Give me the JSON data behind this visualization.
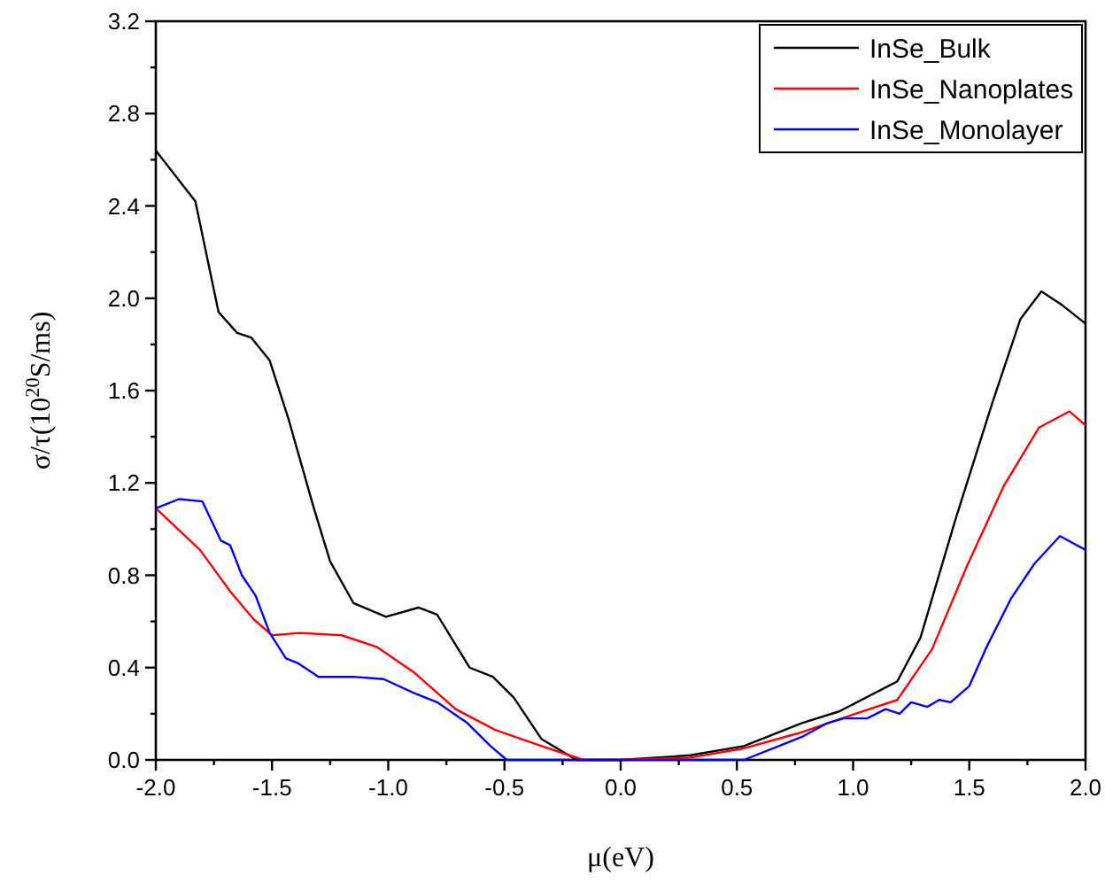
{
  "chart_data": {
    "type": "line",
    "xlabel": "μ(eV)",
    "ylabel": "σ/τ(10$^{20}$S/ms)",
    "xlim": [
      -2.0,
      2.0
    ],
    "ylim": [
      0.0,
      3.2
    ],
    "xticks": [
      {
        "value": -2.0,
        "label": "-2.0"
      },
      {
        "value": -1.75,
        "label": null
      },
      -1.5,
      {
        "value": -1.25,
        "label": null
      },
      {
        "value": -1.0,
        "label": "-1.0"
      },
      {
        "value": -0.75,
        "label": null
      },
      -0.5,
      {
        "value": -0.25,
        "label": null
      },
      {
        "value": 0.0,
        "label": "0.0"
      },
      {
        "value": 0.25,
        "label": null
      },
      0.5,
      {
        "value": 0.75,
        "label": null
      },
      {
        "value": 1.0,
        "label": "1.0"
      },
      {
        "value": 1.25,
        "label": null
      },
      1.5,
      {
        "value": 1.75,
        "label": null
      },
      {
        "value": 2.0,
        "label": "2.0"
      }
    ],
    "yticks": [
      {
        "value": 0.0,
        "label": "0.0"
      },
      {
        "value": 0.2,
        "label": null
      },
      0.4,
      {
        "value": 0.6,
        "label": null
      },
      0.8,
      {
        "value": 1.0,
        "label": null
      },
      1.2,
      {
        "value": 1.4,
        "label": null
      },
      1.6,
      {
        "value": 1.8,
        "label": null
      },
      {
        "value": 2.0,
        "label": "2.0"
      },
      {
        "value": 2.2,
        "label": null
      },
      2.4,
      {
        "value": 2.6,
        "label": null
      },
      2.8,
      {
        "value": 3.0,
        "label": null
      },
      3.2
    ],
    "legend": "top right",
    "grid": false,
    "marker": "none",
    "line_style": "solid",
    "series": [
      {
        "name": "InSe_Bulk",
        "color": "#000000",
        "x": [
          -2.0,
          -1.83,
          -1.73,
          -1.65,
          -1.59,
          -1.51,
          -1.43,
          -1.32,
          -1.25,
          -1.15,
          -1.01,
          -0.87,
          -0.79,
          -0.65,
          -0.55,
          -0.46,
          -0.34,
          -0.19,
          0.0,
          0.3,
          0.53,
          0.78,
          0.94,
          1.19,
          1.29,
          1.44,
          1.6,
          1.72,
          1.81,
          1.9,
          2.0
        ],
        "values": [
          2.64,
          2.42,
          1.94,
          1.85,
          1.83,
          1.73,
          1.48,
          1.09,
          0.86,
          0.68,
          0.62,
          0.66,
          0.63,
          0.4,
          0.36,
          0.27,
          0.09,
          0.0,
          0.0,
          0.02,
          0.06,
          0.16,
          0.21,
          0.34,
          0.53,
          1.04,
          1.55,
          1.91,
          2.03,
          1.97,
          1.89
        ]
      },
      {
        "name": "InSe_Nanoplates",
        "color": "#ff0000",
        "x": [
          -2.0,
          -1.81,
          -1.68,
          -1.58,
          -1.5,
          -1.38,
          -1.2,
          -1.05,
          -0.89,
          -0.71,
          -0.54,
          -0.34,
          -0.16,
          0.0,
          0.3,
          0.53,
          0.78,
          1.01,
          1.19,
          1.34,
          1.49,
          1.65,
          1.8,
          1.93,
          2.0
        ],
        "values": [
          1.09,
          0.91,
          0.73,
          0.61,
          0.54,
          0.55,
          0.54,
          0.49,
          0.38,
          0.22,
          0.13,
          0.06,
          0.0,
          0.0,
          0.01,
          0.05,
          0.12,
          0.2,
          0.26,
          0.48,
          0.84,
          1.19,
          1.44,
          1.51,
          1.45
        ]
      },
      {
        "name": "InSe_Monolayer",
        "color": "#0000ff",
        "x": [
          -2.0,
          -1.9,
          -1.8,
          -1.72,
          -1.68,
          -1.63,
          -1.57,
          -1.51,
          -1.44,
          -1.39,
          -1.3,
          -1.15,
          -1.02,
          -0.89,
          -0.79,
          -0.66,
          -0.56,
          -0.49,
          0.0,
          0.53,
          0.68,
          0.78,
          0.89,
          0.96,
          1.06,
          1.14,
          1.2,
          1.25,
          1.32,
          1.37,
          1.42,
          1.5,
          1.57,
          1.68,
          1.78,
          1.89,
          2.0
        ],
        "values": [
          1.09,
          1.13,
          1.12,
          0.95,
          0.93,
          0.8,
          0.71,
          0.55,
          0.44,
          0.42,
          0.36,
          0.36,
          0.35,
          0.29,
          0.25,
          0.16,
          0.06,
          0.0,
          0.0,
          0.0,
          0.06,
          0.1,
          0.16,
          0.18,
          0.18,
          0.22,
          0.2,
          0.25,
          0.23,
          0.26,
          0.25,
          0.32,
          0.48,
          0.7,
          0.85,
          0.97,
          0.91
        ]
      }
    ]
  }
}
